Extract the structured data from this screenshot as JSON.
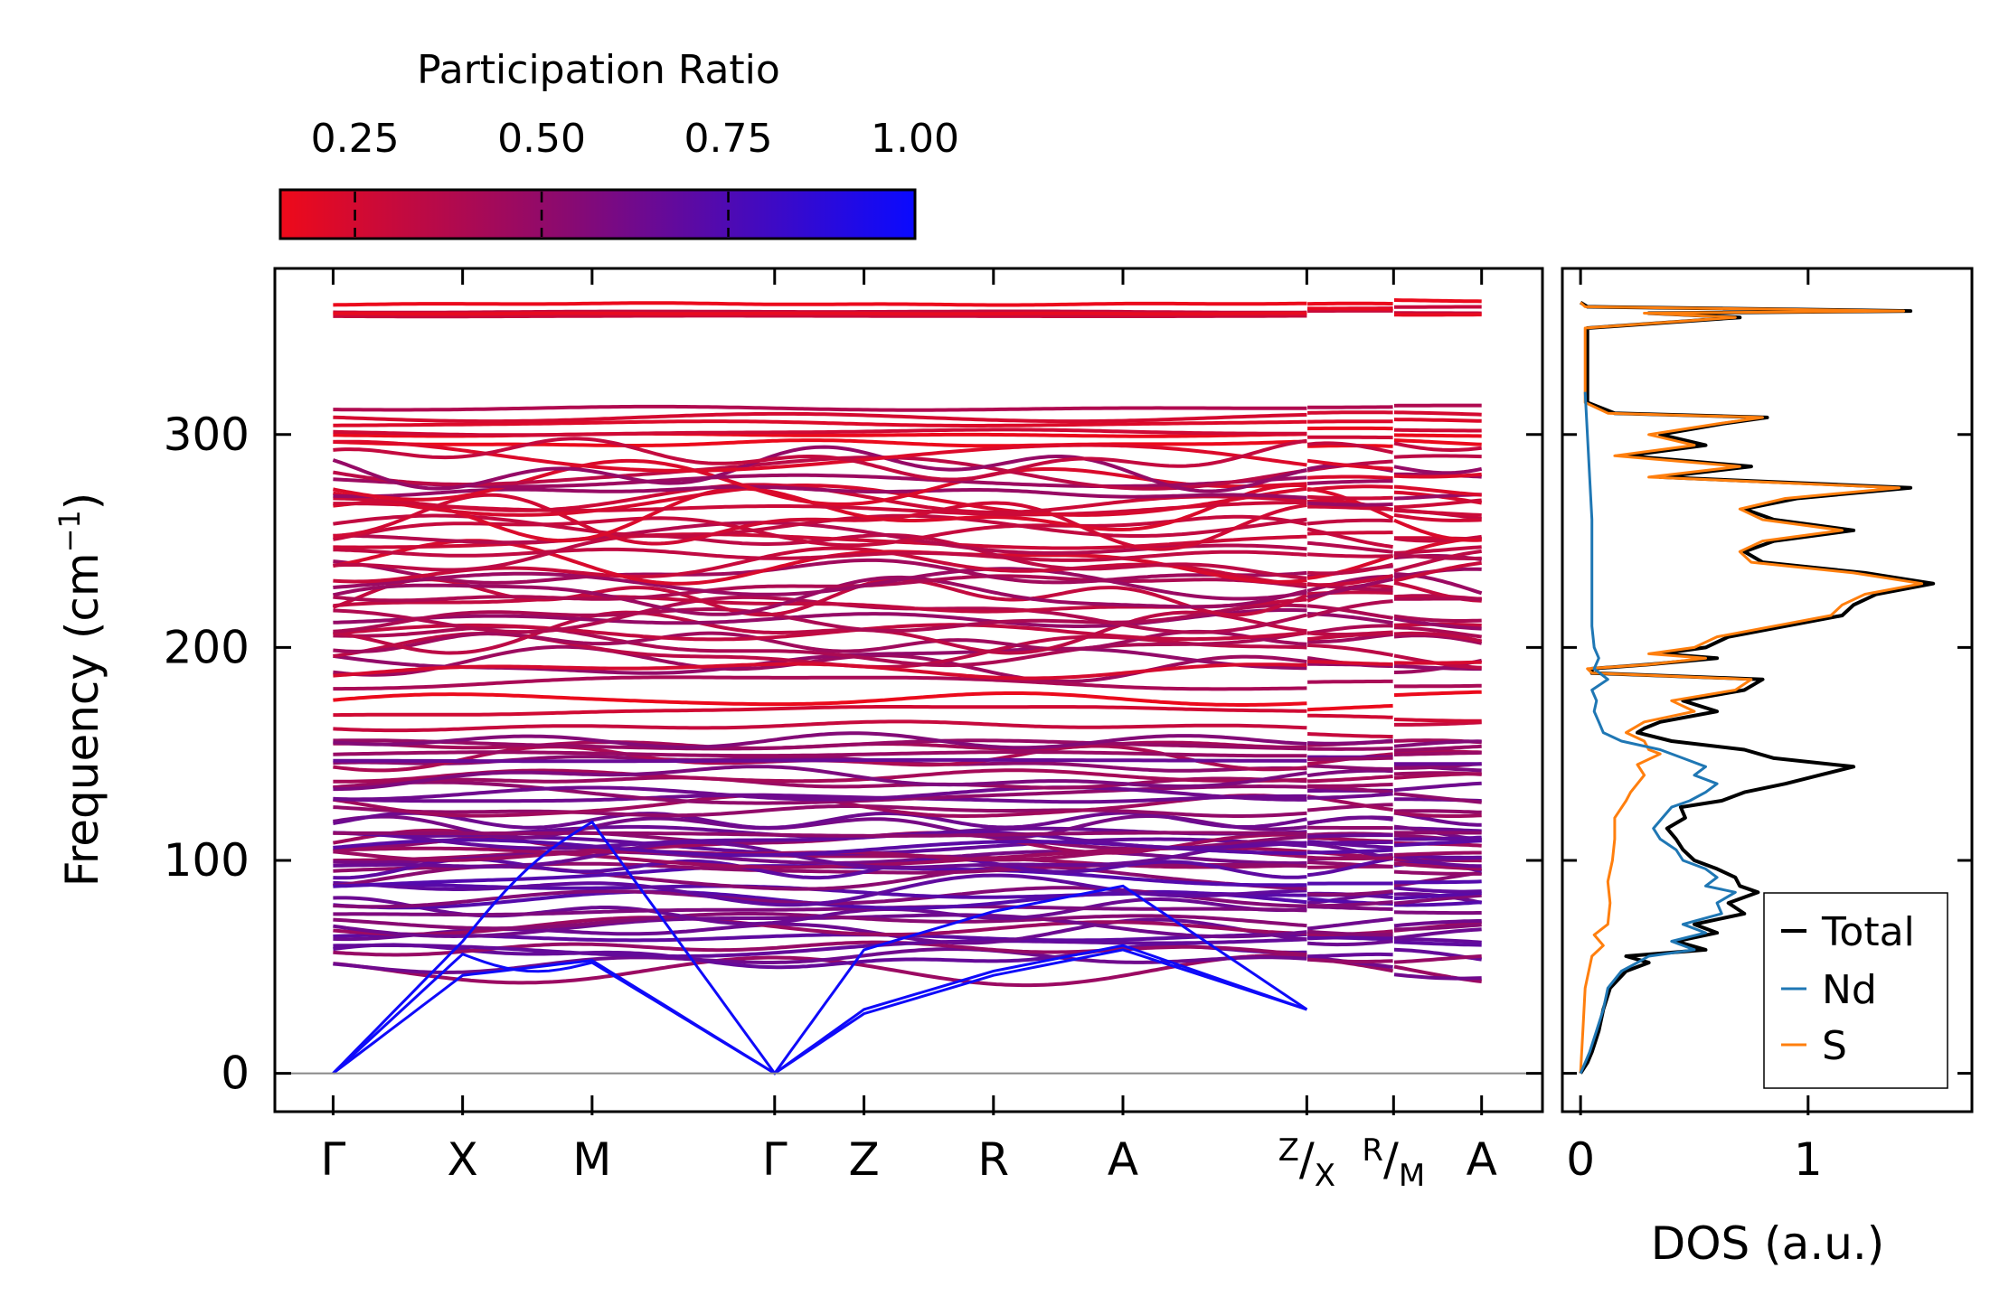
{
  "chart_data": [
    {
      "type": "line",
      "name": "phonon-band-structure",
      "ylabel": "Frequency (cm",
      "ylabel_sup": "−1",
      "ylabel_close": ")",
      "ylim": [
        -18,
        378
      ],
      "yticks": [
        0,
        100,
        200,
        300
      ],
      "ytick_labels": [
        "0",
        "100",
        "200",
        "300"
      ],
      "kpoints": [
        {
          "label": "Γ",
          "pos": 0.0
        },
        {
          "label": "X",
          "pos": 1.0
        },
        {
          "label": "M",
          "pos": 2.0
        },
        {
          "label": "Γ",
          "pos": 3.41
        },
        {
          "label": "Z",
          "pos": 4.1
        },
        {
          "label": "R",
          "pos": 5.1
        },
        {
          "label": "A",
          "pos": 6.1
        },
        {
          "label_num": "Z",
          "label_den": "X",
          "pos": 7.52
        },
        {
          "label_num": "R",
          "label_den": "M",
          "pos": 8.19
        },
        {
          "label": "A",
          "pos": 8.87
        }
      ],
      "xlim": [
        -0.45,
        9.34
      ],
      "zero_line": 0,
      "colorbar": {
        "title": "Participation Ratio",
        "range": [
          0.15,
          1.0
        ],
        "ticks": [
          0.25,
          0.5,
          0.75,
          1.0
        ],
        "tick_labels": [
          "0.25",
          "0.50",
          "0.75",
          "1.00"
        ],
        "color_low": "#ee0a1a",
        "color_mid": "#8a0a70",
        "color_high": "#0a0aff"
      },
      "acoustic_modes": [
        {
          "name": "acoustic-1",
          "x": [
            0,
            1,
            2,
            3.41,
            4.1
          ],
          "y": [
            0,
            56,
            52,
            0,
            58
          ]
        },
        {
          "name": "acoustic-2",
          "x": [
            0,
            1,
            2,
            3.41,
            4.1
          ],
          "y": [
            0,
            46,
            53,
            0,
            30
          ]
        },
        {
          "name": "acoustic-3",
          "x": [
            0,
            1,
            2,
            3.41,
            4.1
          ],
          "y": [
            0,
            62,
            118,
            0,
            28
          ]
        }
      ],
      "band_groups": [
        {
          "name": "upper-flat",
          "min": 355,
          "max": 360,
          "count": 4,
          "pr": 0.2
        },
        {
          "name": "high-bands",
          "min": 296,
          "max": 311,
          "count": 6,
          "pr": 0.28
        },
        {
          "name": "upper-dense",
          "min": 192,
          "max": 290,
          "count": 36,
          "pr": 0.35
        },
        {
          "name": "middle-bands",
          "min": 155,
          "max": 190,
          "count": 6,
          "pr": 0.3
        },
        {
          "name": "lower-dense",
          "min": 100,
          "max": 157,
          "count": 22,
          "pr": 0.55
        },
        {
          "name": "low-bands",
          "min": 50,
          "max": 112,
          "count": 26,
          "pr": 0.6
        }
      ]
    },
    {
      "type": "line",
      "name": "density-of-states",
      "xlabel": "DOS (a.u.)",
      "xlim": [
        -0.08,
        1.72
      ],
      "xticks": [
        0,
        1
      ],
      "xtick_labels": [
        "0",
        "1"
      ],
      "ylim": [
        -18,
        378
      ],
      "legend_position": "bottom-right",
      "series": [
        {
          "name": "Total",
          "color": "#000000",
          "freq": [
            0,
            5,
            10,
            20,
            30,
            40,
            48,
            52,
            55,
            58,
            62,
            66,
            70,
            75,
            80,
            85,
            88,
            92,
            96,
            100,
            105,
            110,
            115,
            120,
            125,
            128,
            132,
            136,
            140,
            144,
            148,
            152,
            156,
            160,
            162,
            165,
            170,
            175,
            180,
            185,
            188,
            190,
            192,
            195,
            197,
            200,
            205,
            210,
            215,
            220,
            225,
            230,
            235,
            240,
            245,
            250,
            255,
            260,
            265,
            270,
            275,
            280,
            285,
            290,
            295,
            300,
            305,
            308,
            310,
            315,
            320,
            330,
            340,
            350,
            355,
            357,
            358,
            360,
            362
          ],
          "dos": [
            0,
            0.03,
            0.05,
            0.08,
            0.1,
            0.13,
            0.2,
            0.3,
            0.2,
            0.55,
            0.42,
            0.6,
            0.5,
            0.72,
            0.65,
            0.78,
            0.7,
            0.68,
            0.6,
            0.5,
            0.45,
            0.42,
            0.38,
            0.46,
            0.44,
            0.62,
            0.72,
            0.9,
            1.05,
            1.2,
            0.85,
            0.72,
            0.4,
            0.25,
            0.28,
            0.35,
            0.6,
            0.45,
            0.72,
            0.8,
            0.05,
            0.05,
            0.3,
            0.6,
            0.35,
            0.55,
            0.65,
            0.9,
            1.15,
            1.2,
            1.3,
            1.55,
            1.25,
            0.8,
            0.72,
            0.85,
            1.2,
            0.85,
            0.72,
            0.95,
            1.45,
            0.35,
            0.75,
            0.2,
            0.55,
            0.35,
            0.62,
            0.82,
            0.15,
            0.03,
            0.03,
            0.03,
            0.03,
            0.03,
            0.7,
            0.3,
            1.45,
            0.03,
            0
          ]
        },
        {
          "name": "Nd",
          "color": "#1f77b4",
          "freq": [
            0,
            5,
            10,
            20,
            30,
            40,
            48,
            52,
            55,
            58,
            62,
            66,
            70,
            75,
            80,
            85,
            88,
            92,
            96,
            100,
            105,
            110,
            115,
            120,
            125,
            128,
            132,
            136,
            140,
            144,
            148,
            152,
            156,
            160,
            165,
            170,
            175,
            180,
            185,
            190,
            195,
            200,
            210,
            220,
            240,
            260,
            280,
            300,
            320
          ],
          "dos": [
            0,
            0.02,
            0.04,
            0.07,
            0.1,
            0.12,
            0.18,
            0.25,
            0.3,
            0.5,
            0.4,
            0.55,
            0.45,
            0.62,
            0.6,
            0.68,
            0.55,
            0.6,
            0.55,
            0.45,
            0.42,
            0.35,
            0.32,
            0.36,
            0.4,
            0.48,
            0.55,
            0.6,
            0.5,
            0.55,
            0.45,
            0.35,
            0.18,
            0.1,
            0.08,
            0.06,
            0.07,
            0.05,
            0.12,
            0.06,
            0.08,
            0.06,
            0.05,
            0.05,
            0.05,
            0.05,
            0.04,
            0.03,
            0.02
          ]
        },
        {
          "name": "S",
          "color": "#ff7f0e",
          "freq": [
            0,
            10,
            20,
            40,
            55,
            60,
            65,
            70,
            80,
            90,
            100,
            110,
            120,
            128,
            132,
            136,
            140,
            145,
            150,
            152,
            156,
            160,
            165,
            170,
            175,
            180,
            185,
            188,
            190,
            192,
            195,
            197,
            200,
            205,
            210,
            215,
            220,
            225,
            230,
            235,
            240,
            245,
            250,
            255,
            260,
            265,
            270,
            275,
            280,
            285,
            290,
            295,
            300,
            305,
            308,
            310,
            315,
            320,
            330,
            340,
            350,
            355,
            357,
            358,
            360,
            362
          ],
          "dos": [
            0,
            0.005,
            0.01,
            0.02,
            0.05,
            0.1,
            0.06,
            0.12,
            0.13,
            0.12,
            0.14,
            0.15,
            0.15,
            0.2,
            0.22,
            0.25,
            0.28,
            0.25,
            0.35,
            0.3,
            0.28,
            0.2,
            0.28,
            0.5,
            0.4,
            0.68,
            0.75,
            0.05,
            0.03,
            0.3,
            0.55,
            0.3,
            0.5,
            0.6,
            0.85,
            1.1,
            1.15,
            1.25,
            1.5,
            1.2,
            0.75,
            0.7,
            0.8,
            1.15,
            0.8,
            0.7,
            0.9,
            1.4,
            0.3,
            0.7,
            0.15,
            0.5,
            0.3,
            0.6,
            0.8,
            0.12,
            0.02,
            0.02,
            0.02,
            0.02,
            0.02,
            0.68,
            0.28,
            1.42,
            0.02,
            0
          ]
        }
      ]
    }
  ]
}
